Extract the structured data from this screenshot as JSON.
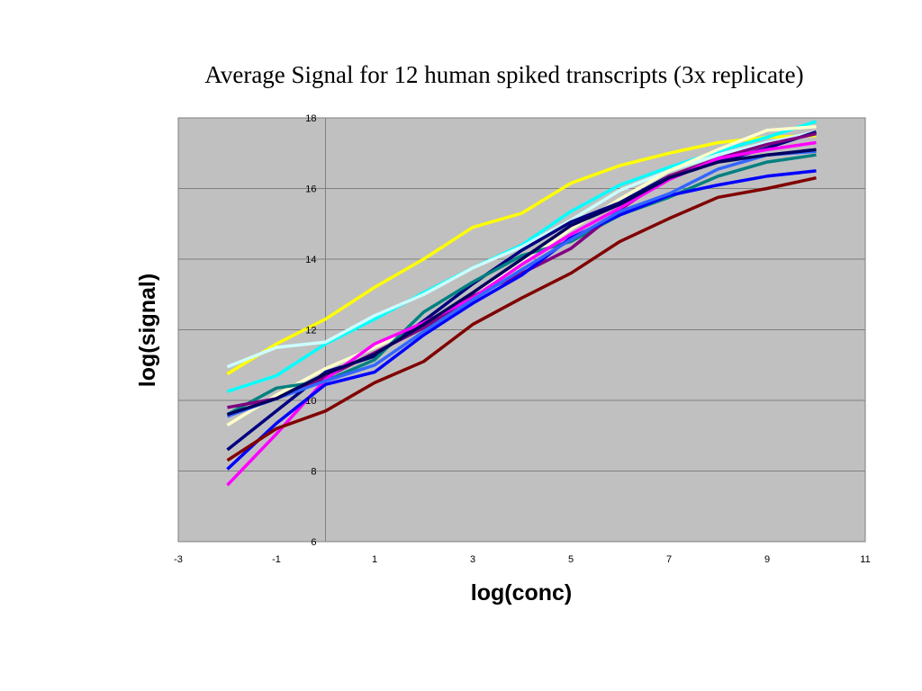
{
  "chart_data": {
    "type": "line",
    "title": "Average Signal for 12 human spiked transcripts (3x replicate)",
    "xlabel": "log(conc)",
    "ylabel": "log(signal)",
    "xlim": [
      -3,
      11
    ],
    "ylim": [
      6,
      18
    ],
    "xticks": [
      -3,
      -1,
      1,
      3,
      5,
      7,
      9,
      11
    ],
    "yticks": [
      6,
      8,
      10,
      12,
      14,
      16,
      18
    ],
    "grid": "horizontal",
    "background": "#c0c0c0",
    "x": [
      -2,
      -1,
      0,
      1,
      2,
      3,
      4,
      5,
      6,
      7,
      8,
      9,
      10
    ],
    "series": [
      {
        "color": "#ffff00",
        "values": [
          10.75,
          11.6,
          12.3,
          13.2,
          14.0,
          14.9,
          15.3,
          16.15,
          16.65,
          17.0,
          17.3,
          17.45,
          17.5
        ]
      },
      {
        "color": "#00ffff",
        "values": [
          10.25,
          10.7,
          11.6,
          12.3,
          13.05,
          13.75,
          14.4,
          15.35,
          16.1,
          16.6,
          17.05,
          17.45,
          17.9
        ]
      },
      {
        "color": "#ccffff",
        "values": [
          10.95,
          11.5,
          11.65,
          12.4,
          13.0,
          13.75,
          14.35,
          15.1,
          15.95,
          16.5,
          16.95,
          17.3,
          17.6
        ]
      },
      {
        "color": "#ffffcc",
        "values": [
          9.3,
          10.15,
          10.9,
          11.5,
          12.15,
          13.05,
          13.9,
          14.85,
          15.7,
          16.5,
          17.1,
          17.65,
          17.75
        ]
      },
      {
        "color": "#000080",
        "values": [
          8.6,
          9.7,
          10.8,
          11.25,
          12.25,
          13.3,
          14.25,
          15.05,
          15.6,
          16.35,
          16.75,
          17.15,
          17.6
        ]
      },
      {
        "color": "#008080",
        "values": [
          9.6,
          10.35,
          10.55,
          11.15,
          12.5,
          13.35,
          14.1,
          14.5,
          15.25,
          15.75,
          16.35,
          16.75,
          16.95
        ]
      },
      {
        "color": "#800080",
        "values": [
          9.8,
          10.05,
          10.65,
          11.35,
          12.05,
          12.95,
          13.6,
          14.3,
          15.4,
          16.35,
          16.85,
          17.25,
          17.55
        ]
      },
      {
        "color": "#ff00ff",
        "values": [
          7.6,
          9.05,
          10.6,
          11.6,
          12.2,
          12.9,
          13.85,
          14.7,
          15.45,
          16.25,
          16.85,
          17.1,
          17.3
        ]
      },
      {
        "color": "#0000ff",
        "values": [
          8.05,
          9.35,
          10.45,
          10.8,
          11.85,
          12.75,
          13.55,
          14.6,
          15.25,
          15.8,
          16.1,
          16.35,
          16.5
        ]
      },
      {
        "color": "#3366ff",
        "values": [
          9.55,
          10.05,
          10.55,
          11.0,
          11.95,
          12.85,
          13.7,
          14.55,
          15.35,
          15.85,
          16.55,
          16.95,
          17.05
        ]
      },
      {
        "color": "#000060",
        "values": [
          9.6,
          10.05,
          10.75,
          11.3,
          12.15,
          13.05,
          14.0,
          14.95,
          15.55,
          16.3,
          16.75,
          16.95,
          17.1
        ]
      },
      {
        "color": "#800000",
        "values": [
          8.3,
          9.2,
          9.7,
          10.5,
          11.1,
          12.15,
          12.9,
          13.6,
          14.5,
          15.15,
          15.75,
          16.0,
          16.3
        ]
      }
    ]
  }
}
